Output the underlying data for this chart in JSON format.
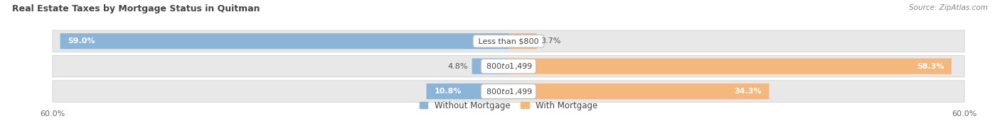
{
  "title": "Real Estate Taxes by Mortgage Status in Quitman",
  "source": "Source: ZipAtlas.com",
  "rows": [
    {
      "label": "Less than $800",
      "without_mortgage": 59.0,
      "with_mortgage": 3.7
    },
    {
      "label": "$800 to $1,499",
      "without_mortgage": 4.8,
      "with_mortgage": 58.3
    },
    {
      "label": "$800 to $1,499",
      "without_mortgage": 10.8,
      "with_mortgage": 34.3
    }
  ],
  "xlim": 60.0,
  "color_without": "#8ab4d8",
  "color_with": "#f5b87c",
  "bar_height": 0.62,
  "bg_bar": "#e8e8e8",
  "bg_figure": "#ffffff",
  "label_fontsize": 8.0,
  "title_fontsize": 9.0,
  "pct_fontsize": 8.0,
  "axis_label_fontsize": 8.0,
  "legend_fontsize": 8.5,
  "title_color": "#444444",
  "source_color": "#888888",
  "pct_inside_color": "#ffffff",
  "pct_outside_color": "#555555",
  "label_text_color": "#444444",
  "axis_tick_color": "#666666"
}
